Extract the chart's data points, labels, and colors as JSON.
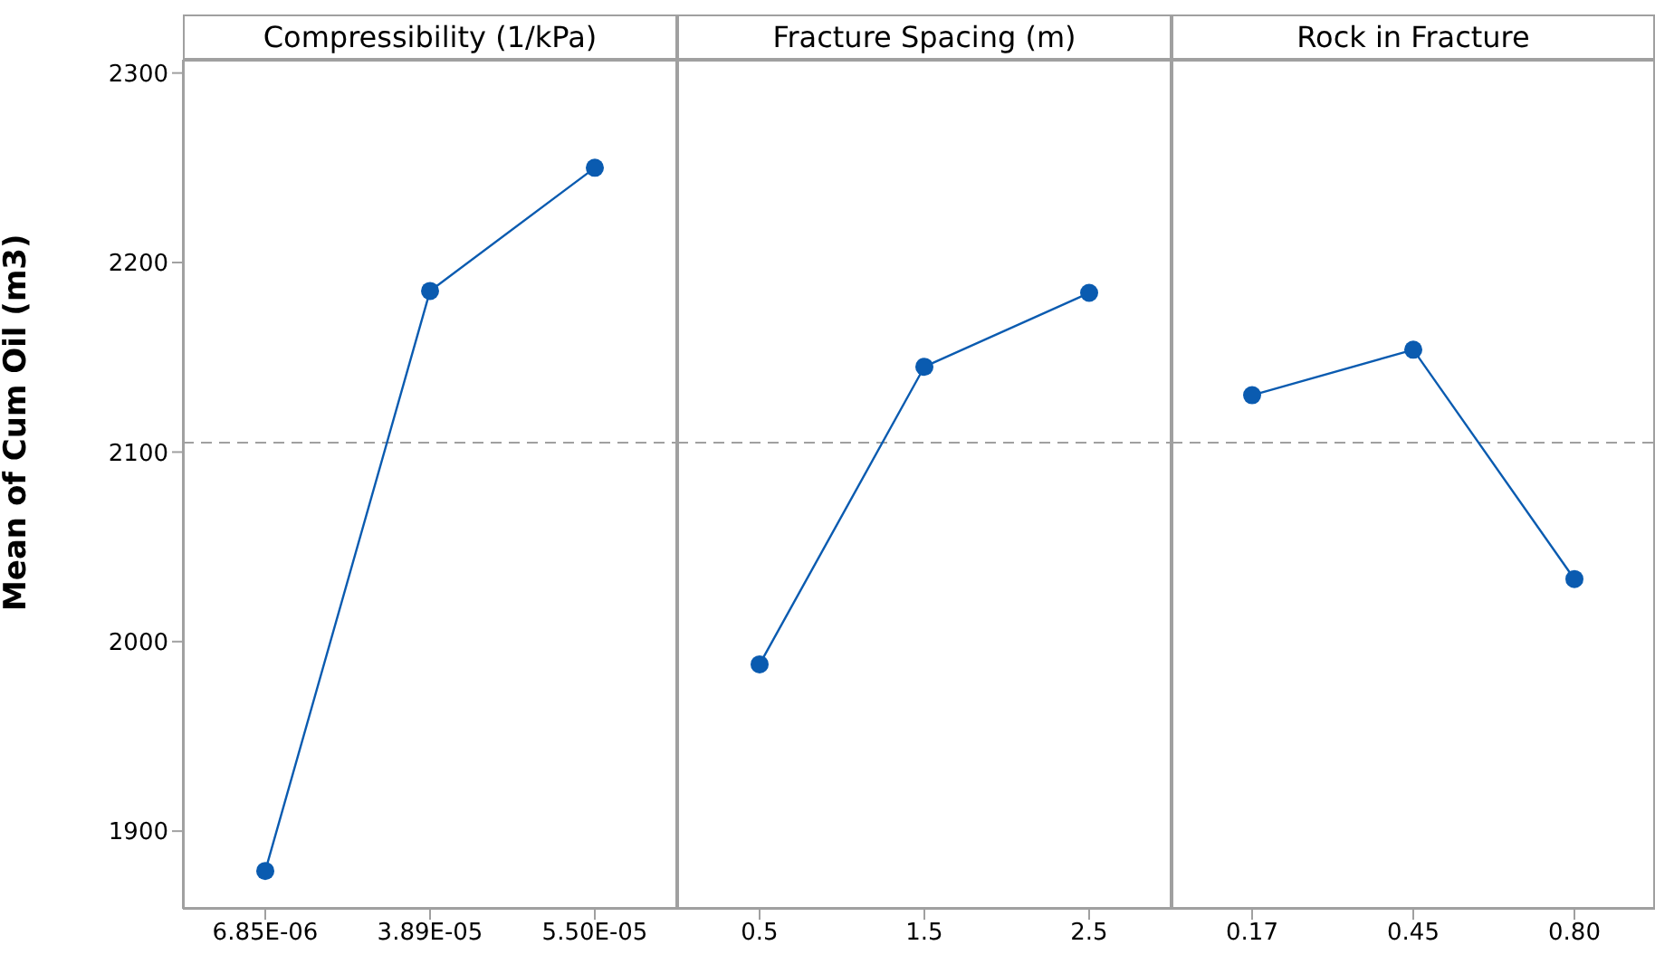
{
  "chart_data": [
    {
      "type": "line",
      "title": "Compressibility (1/kPa)",
      "ylabel": "Mean of Cum Oil (m3)",
      "categories": [
        "6.85E-06",
        "3.89E-05",
        "5.50E-05"
      ],
      "values": [
        1879,
        2185,
        2250
      ],
      "color": "#0a5bb0",
      "ylim": [
        1859,
        2307
      ],
      "yticks": [
        1900,
        2000,
        2100,
        2200,
        2300
      ],
      "marker": "circle",
      "line_style": "solid",
      "ref_lines": [
        {
          "axis": "y",
          "value": 2105,
          "color": "#a0a0a0",
          "line_style": "dashed"
        }
      ]
    },
    {
      "type": "line",
      "title": "Fracture Spacing (m)",
      "categories": [
        "0.5",
        "1.5",
        "2.5"
      ],
      "values": [
        1988,
        2145,
        2184
      ],
      "color": "#0a5bb0",
      "ylim": [
        1859,
        2307
      ],
      "yticks": [
        1900,
        2000,
        2100,
        2200,
        2300
      ],
      "tick_labels": "x",
      "marker": "circle",
      "line_style": "solid",
      "ref_lines": [
        {
          "axis": "y",
          "value": 2105,
          "color": "#a0a0a0",
          "line_style": "dashed"
        }
      ]
    },
    {
      "type": "line",
      "title": "Rock in Fracture",
      "categories": [
        "0.17",
        "0.45",
        "0.80"
      ],
      "values": [
        2130,
        2154,
        2033
      ],
      "color": "#0a5bb0",
      "ylim": [
        1859,
        2307
      ],
      "yticks": [
        1900,
        2000,
        2100,
        2200,
        2300
      ],
      "tick_labels": "x",
      "marker": "circle",
      "line_style": "solid",
      "ref_lines": [
        {
          "axis": "y",
          "value": 2105,
          "color": "#a0a0a0",
          "line_style": "dashed"
        }
      ]
    }
  ]
}
